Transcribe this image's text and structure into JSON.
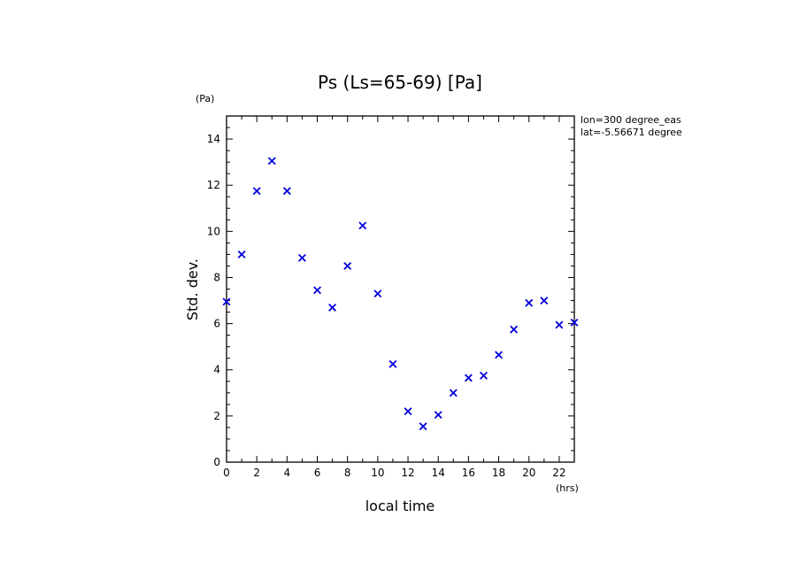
{
  "chart_data": {
    "type": "scatter",
    "title": "Ps (Ls=65-69) [Pa]",
    "xlabel": "local time",
    "ylabel": "Std. dev.",
    "x_unit": "(hrs)",
    "y_unit": "(Pa)",
    "xlim": [
      0,
      23
    ],
    "ylim": [
      0,
      15
    ],
    "x_ticks": [
      0,
      2,
      4,
      6,
      8,
      10,
      12,
      14,
      16,
      18,
      20,
      22
    ],
    "y_ticks": [
      0,
      2,
      4,
      6,
      8,
      10,
      12,
      14
    ],
    "annotations": [
      "lon=300 degree_eas",
      "lat=-5.56671 degree"
    ],
    "marker": "x",
    "color": "#0000dd",
    "grid": false,
    "series": [
      {
        "x": [
          0,
          1,
          2,
          3,
          4,
          5,
          6,
          7,
          8,
          9,
          10,
          11,
          12,
          13,
          14,
          15,
          16,
          17,
          18,
          19,
          20,
          21,
          22,
          23
        ],
        "y": [
          6.95,
          9.0,
          11.75,
          13.05,
          11.75,
          8.85,
          7.45,
          6.7,
          8.5,
          10.25,
          7.3,
          4.25,
          2.2,
          1.55,
          2.05,
          3.0,
          3.65,
          3.75,
          4.65,
          5.75,
          6.9,
          7.0,
          5.95,
          6.05
        ]
      }
    ]
  }
}
